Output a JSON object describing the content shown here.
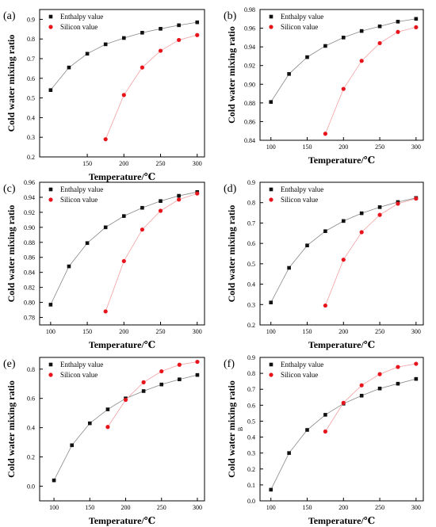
{
  "figure": {
    "panels": [
      "(a)",
      "(b)",
      "(c)",
      "(d)",
      "(e)",
      "(f)"
    ]
  },
  "colors": {
    "enthalpy": "#111111",
    "silicon": "#e8141b",
    "enthalpy_line": "#888888",
    "silicon_line": "#f3a0a3",
    "axis": "#000000"
  },
  "chart_data": [
    {
      "panel": "(a)",
      "type": "scatter",
      "xlabel": "Temperature/℃",
      "ylabel": "Cold water mixing ratio",
      "xlim": [
        85,
        310
      ],
      "ylim": [
        0.2,
        0.95
      ],
      "xticks": [
        150,
        200,
        250,
        300
      ],
      "yticks": [
        0.2,
        0.3,
        0.4,
        0.5,
        0.6,
        0.7,
        0.8,
        0.9
      ],
      "ytick_labels": [
        "0.2",
        "0.3",
        "0.4",
        "0.5",
        "0.6",
        "0.7",
        "0.8",
        "0.9"
      ],
      "legend_position": "top-left",
      "series": [
        {
          "name": "Enthalpy value",
          "x": [
            100,
            125,
            150,
            175,
            200,
            225,
            250,
            275,
            300
          ],
          "y": [
            0.54,
            0.655,
            0.725,
            0.773,
            0.805,
            0.832,
            0.852,
            0.87,
            0.885
          ]
        },
        {
          "name": "Silicon value",
          "x": [
            175,
            200,
            225,
            250,
            275,
            300
          ],
          "y": [
            0.29,
            0.515,
            0.655,
            0.74,
            0.795,
            0.82
          ]
        }
      ]
    },
    {
      "panel": "(b)",
      "type": "scatter",
      "xlabel": "Temperature/℃",
      "ylabel": "Cold water mixing ratio",
      "xlim": [
        85,
        310
      ],
      "ylim": [
        0.84,
        0.98
      ],
      "xticks": [
        100,
        150,
        200,
        250,
        300
      ],
      "yticks": [
        0.84,
        0.86,
        0.88,
        0.9,
        0.92,
        0.94,
        0.96,
        0.98
      ],
      "ytick_labels": [
        "0.84",
        "0.86",
        "0.88",
        "0.90",
        "0.92",
        "0.94",
        "0.96",
        "0.98"
      ],
      "legend_position": "top-left",
      "series": [
        {
          "name": "Enthalpy value",
          "x": [
            100,
            125,
            150,
            175,
            200,
            225,
            250,
            275,
            300
          ],
          "y": [
            0.881,
            0.911,
            0.929,
            0.941,
            0.95,
            0.957,
            0.962,
            0.967,
            0.97
          ]
        },
        {
          "name": "Silicon value",
          "x": [
            175,
            200,
            225,
            250,
            275,
            300
          ],
          "y": [
            0.847,
            0.895,
            0.925,
            0.944,
            0.956,
            0.961
          ]
        }
      ]
    },
    {
      "panel": "(c)",
      "type": "scatter",
      "xlabel": "Temperature/℃",
      "ylabel": "Cold water mixing ratio",
      "xlim": [
        85,
        310
      ],
      "ylim": [
        0.77,
        0.96
      ],
      "xticks": [
        100,
        150,
        200,
        250,
        300
      ],
      "yticks": [
        0.78,
        0.8,
        0.82,
        0.84,
        0.86,
        0.88,
        0.9,
        0.92,
        0.94,
        0.96
      ],
      "ytick_labels": [
        "0.78",
        "0.80",
        "0.82",
        "0.84",
        "0.86",
        "0.88",
        "0.90",
        "0.92",
        "0.94",
        "0.96"
      ],
      "legend_position": "top-left",
      "series": [
        {
          "name": "Enthalpy value",
          "x": [
            100,
            125,
            150,
            175,
            200,
            225,
            250,
            275,
            300
          ],
          "y": [
            0.797,
            0.848,
            0.879,
            0.9,
            0.915,
            0.926,
            0.935,
            0.942,
            0.947
          ]
        },
        {
          "name": "Silicon value",
          "x": [
            175,
            200,
            225,
            250,
            275,
            300
          ],
          "y": [
            0.788,
            0.855,
            0.897,
            0.922,
            0.937,
            0.945
          ]
        }
      ]
    },
    {
      "panel": "(d)",
      "type": "scatter",
      "xlabel": "Temperature/℃",
      "ylabel": "Cold water mixing ratio",
      "xlim": [
        85,
        310
      ],
      "ylim": [
        0.2,
        0.9
      ],
      "xticks": [
        100,
        150,
        200,
        250,
        300
      ],
      "yticks": [
        0.2,
        0.3,
        0.4,
        0.5,
        0.6,
        0.7,
        0.8,
        0.9
      ],
      "ytick_labels": [
        "0.2",
        "0.3",
        "0.4",
        "0.5",
        "0.6",
        "0.7",
        "0.8",
        "0.9"
      ],
      "legend_position": "top-left",
      "series": [
        {
          "name": "Enthalpy value",
          "x": [
            100,
            125,
            150,
            175,
            200,
            225,
            250,
            275,
            300
          ],
          "y": [
            0.31,
            0.48,
            0.59,
            0.66,
            0.71,
            0.748,
            0.778,
            0.803,
            0.823
          ]
        },
        {
          "name": "Silicon value",
          "x": [
            175,
            200,
            225,
            250,
            275,
            300
          ],
          "y": [
            0.295,
            0.52,
            0.655,
            0.74,
            0.795,
            0.82
          ]
        }
      ]
    },
    {
      "panel": "(e)",
      "type": "scatter",
      "xlabel": "Temperature/℃",
      "ylabel": "Cold water mixing ratio",
      "xlim": [
        80,
        310
      ],
      "ylim": [
        -0.1,
        0.88
      ],
      "xticks": [
        100,
        150,
        200,
        250,
        300
      ],
      "yticks": [
        0.0,
        0.2,
        0.4,
        0.6,
        0.8
      ],
      "ytick_labels": [
        "0.0",
        "0.2",
        "0.4",
        "0.6",
        "0.8"
      ],
      "legend_position": "top-left",
      "series": [
        {
          "name": "Enthalpy value",
          "x": [
            100,
            125,
            150,
            175,
            200,
            225,
            250,
            275,
            300
          ],
          "y": [
            0.04,
            0.28,
            0.43,
            0.525,
            0.6,
            0.65,
            0.695,
            0.73,
            0.76
          ]
        },
        {
          "name": "Silicon value",
          "x": [
            175,
            200,
            225,
            250,
            275,
            300
          ],
          "y": [
            0.405,
            0.59,
            0.71,
            0.785,
            0.83,
            0.85
          ]
        }
      ]
    },
    {
      "panel": "(f)",
      "type": "scatter",
      "xlabel": "Temperature/℃",
      "ylabel": "Cold water mixing ratio",
      "inner_ylabel": "B",
      "xlim": [
        85,
        310
      ],
      "ylim": [
        0.0,
        0.9
      ],
      "xticks": [
        100,
        150,
        200,
        250,
        300
      ],
      "yticks": [
        0.0,
        0.1,
        0.2,
        0.3,
        0.4,
        0.5,
        0.6,
        0.7,
        0.8,
        0.9
      ],
      "ytick_labels": [
        "0.0",
        "0.1",
        "0.2",
        "0.3",
        "0.4",
        "0.5",
        "0.6",
        "0.7",
        "0.8",
        "0.9"
      ],
      "legend_position": "top-left",
      "series": [
        {
          "name": "Enthalpy value",
          "x": [
            100,
            125,
            150,
            175,
            200,
            225,
            250,
            275,
            300
          ],
          "y": [
            0.07,
            0.3,
            0.445,
            0.54,
            0.61,
            0.66,
            0.705,
            0.735,
            0.765
          ]
        },
        {
          "name": "Silicon value",
          "x": [
            175,
            200,
            225,
            250,
            275,
            300
          ],
          "y": [
            0.435,
            0.615,
            0.725,
            0.795,
            0.84,
            0.86
          ]
        }
      ]
    }
  ]
}
